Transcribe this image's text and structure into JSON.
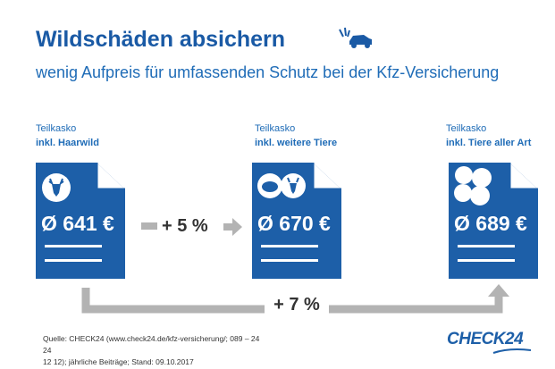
{
  "header": {
    "title": "Wildschäden absichern",
    "subtitle": "wenig Aufpreis für umfassenden Schutz bei der Kfz-Versicherung"
  },
  "columns": [
    {
      "line1": "Teilkasko",
      "line2": "inkl. Haarwild",
      "price": "Ø 641 €",
      "badge_icon": "deer-icon"
    },
    {
      "line1": "Teilkasko",
      "line2": "inkl. weitere Tiere",
      "price": "Ø 670 €",
      "badge_icon": "animals-icon"
    },
    {
      "line1": "Teilkasko",
      "line2": "inkl.  Tiere aller Art",
      "price": "Ø 689 €",
      "badge_icon": "all-animals-icon"
    }
  ],
  "deltas": {
    "step1": "+ 5 %",
    "overall": "+ 7 %"
  },
  "footer": {
    "source_line1": "Quelle: CHECK24 (www.check24.de/kfz-versicherung/; 089 – 24 24",
    "source_line2": "12 12); jährliche Beiträge; Stand: 09.10.2017",
    "brand": "CHECK24"
  },
  "colors": {
    "doc_blue": "#1d5fa8",
    "title_blue": "#1a5aa5",
    "arrow_gray": "#b3b3b3"
  }
}
